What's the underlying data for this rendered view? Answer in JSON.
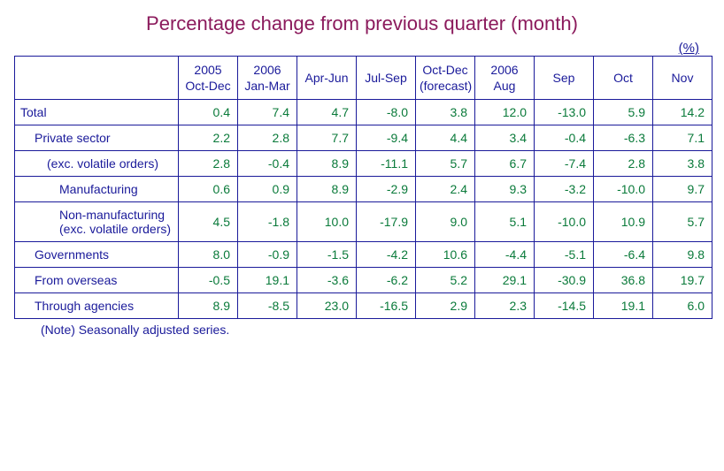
{
  "title": "Percentage change from previous quarter (month)",
  "unit_label": "(%)",
  "note": "(Note) Seasonally adjusted series.",
  "table": {
    "colors": {
      "border": "#1a1a9a",
      "header_text": "#1a1a9a",
      "label_text": "#1a1a9a",
      "value_text": "#0a7a3a",
      "title_text": "#8b1a5c",
      "background": "#ffffff"
    },
    "font_sizes": {
      "title": 22,
      "cell": 14,
      "note": 14
    },
    "headers": [
      {
        "line1": "2005",
        "line2": "Oct-Dec",
        "line3": ""
      },
      {
        "line1": "2006",
        "line2": "Jan-Mar",
        "line3": ""
      },
      {
        "line1": "",
        "line2": "Apr-Jun",
        "line3": ""
      },
      {
        "line1": "",
        "line2": "Jul-Sep",
        "line3": ""
      },
      {
        "line1": "",
        "line2": "Oct-Dec",
        "line3": "(forecast)"
      },
      {
        "line1": "2006",
        "line2": "Aug",
        "line3": ""
      },
      {
        "line1": "",
        "line2": "Sep",
        "line3": ""
      },
      {
        "line1": "",
        "line2": "Oct",
        "line3": ""
      },
      {
        "line1": "",
        "line2": "Nov",
        "line3": ""
      }
    ],
    "rows": [
      {
        "label": "Total",
        "indent": 0,
        "values": [
          "0.4",
          "7.4",
          "4.7",
          "-8.0",
          "3.8",
          "12.0",
          "-13.0",
          "5.9",
          "14.2"
        ]
      },
      {
        "label": "Private sector",
        "indent": 1,
        "values": [
          "2.2",
          "2.8",
          "7.7",
          "-9.4",
          "4.4",
          "3.4",
          "-0.4",
          "-6.3",
          "7.1"
        ]
      },
      {
        "label": "(exc. volatile orders)",
        "indent": 2,
        "values": [
          "2.8",
          "-0.4",
          "8.9",
          "-11.1",
          "5.7",
          "6.7",
          "-7.4",
          "2.8",
          "3.8"
        ]
      },
      {
        "label": "Manufacturing",
        "indent": 3,
        "values": [
          "0.6",
          "0.9",
          "8.9",
          "-2.9",
          "2.4",
          "9.3",
          "-3.2",
          "-10.0",
          "9.7"
        ]
      },
      {
        "label": "Non-manufacturing\n(exc. volatile orders)",
        "indent": 3,
        "values": [
          "4.5",
          "-1.8",
          "10.0",
          "-17.9",
          "9.0",
          "5.1",
          "-10.0",
          "10.9",
          "5.7"
        ]
      },
      {
        "label": "Governments",
        "indent": 1,
        "values": [
          "8.0",
          "-0.9",
          "-1.5",
          "-4.2",
          "10.6",
          "-4.4",
          "-5.1",
          "-6.4",
          "9.8"
        ]
      },
      {
        "label": "From overseas",
        "indent": 1,
        "values": [
          "-0.5",
          "19.1",
          "-3.6",
          "-6.2",
          "5.2",
          "29.1",
          "-30.9",
          "36.8",
          "19.7"
        ]
      },
      {
        "label": "Through agencies",
        "indent": 1,
        "values": [
          "8.9",
          "-8.5",
          "23.0",
          "-16.5",
          "2.9",
          "2.3",
          "-14.5",
          "19.1",
          "6.0"
        ]
      }
    ]
  }
}
